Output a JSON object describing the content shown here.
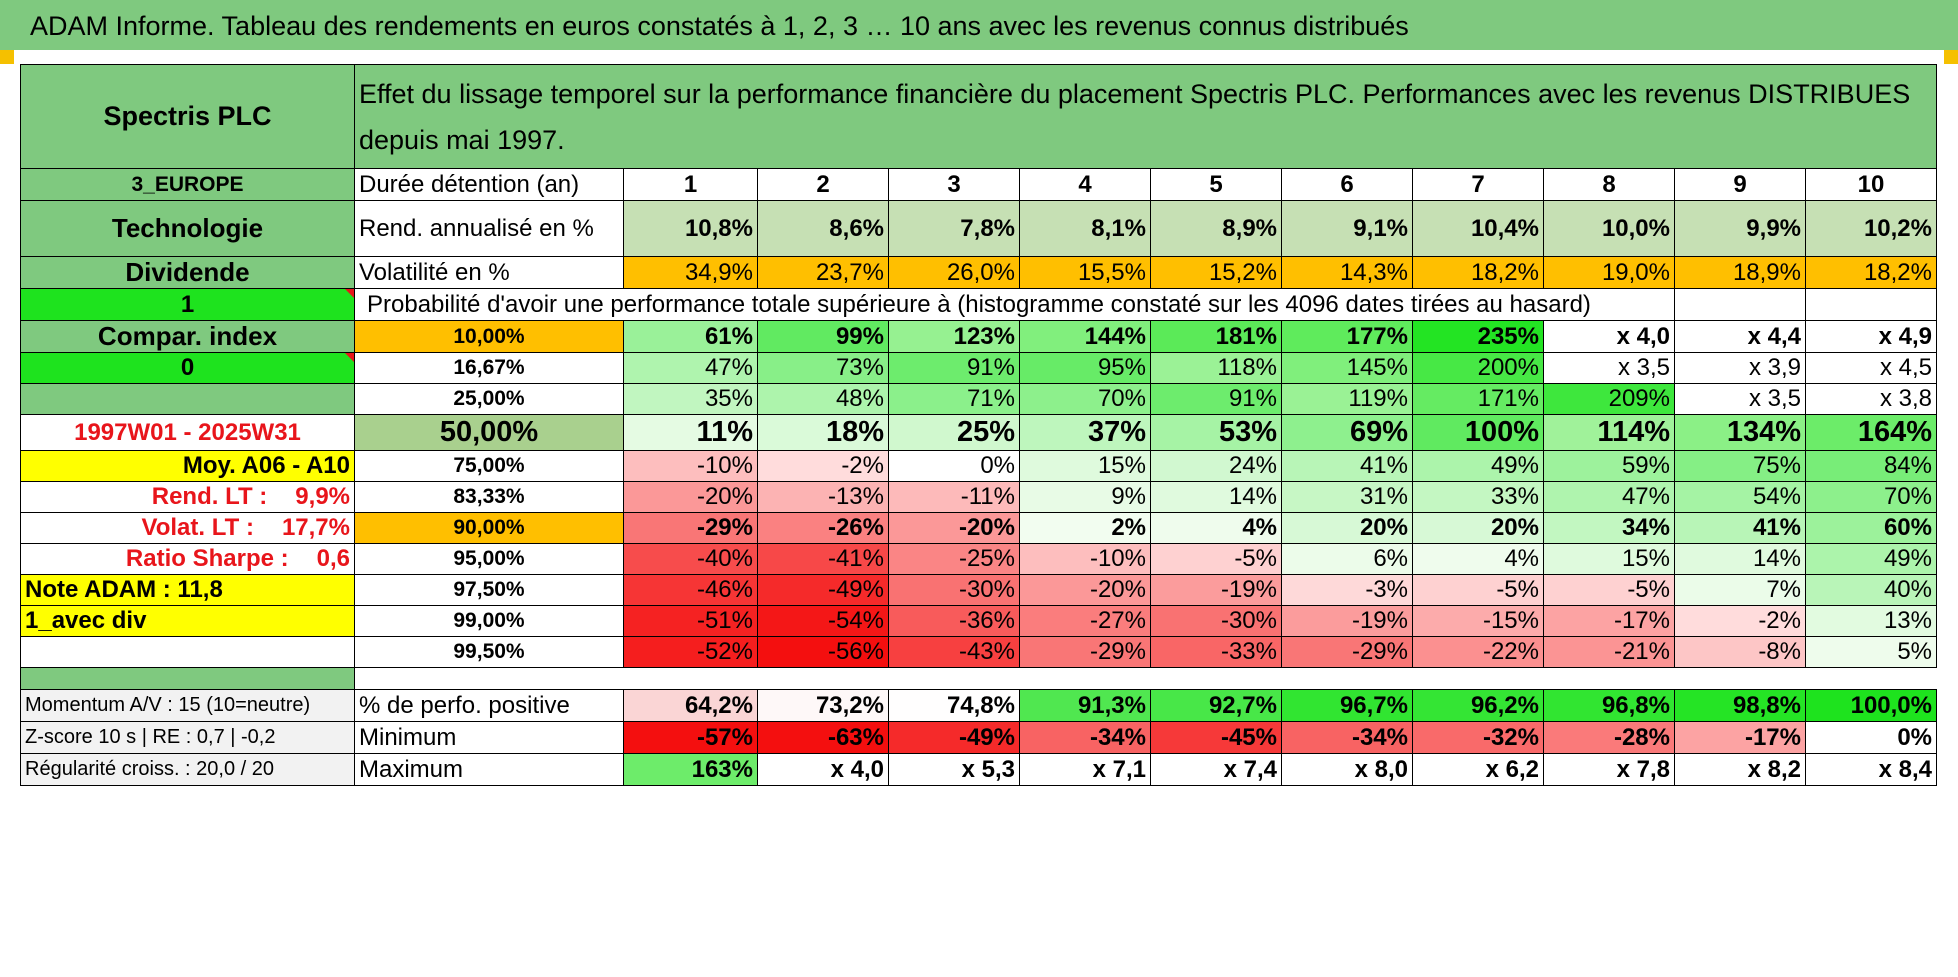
{
  "title": "ADAM Informe. Tableau des rendements en euros constatés à 1, 2, 3 … 10 ans avec les revenus connus distribués",
  "header": {
    "company": "Spectris PLC",
    "description": "Effet du lissage temporel sur la performance financière du placement Spectris PLC. Performances avec les revenus DISTRIBUES depuis mai 1997."
  },
  "left_panel": {
    "region": "3_EUROPE",
    "sector": "Technologie",
    "type": "Dividende",
    "flag1": "1",
    "compar_index": "Compar. index",
    "flag2": "0",
    "period": "1997W01 - 2025W31",
    "moy": "Moy. A06 - A10",
    "rend_label": "Rend. LT :",
    "rend_value": "9,9%",
    "volat_label": "Volat. LT :",
    "volat_value": "17,7%",
    "sharpe_label": "Ratio Sharpe :",
    "sharpe_value": "0,6",
    "note": "Note ADAM : 11,8",
    "div": "1_avec div"
  },
  "durations_label": "Durée détention (an)",
  "durations": [
    "1",
    "2",
    "3",
    "4",
    "5",
    "6",
    "7",
    "8",
    "9",
    "10"
  ],
  "rend_label": "Rend. annualisé en %",
  "rend": [
    "10,8%",
    "8,6%",
    "7,8%",
    "8,1%",
    "8,9%",
    "9,1%",
    "10,4%",
    "10,0%",
    "9,9%",
    "10,2%"
  ],
  "vol_label": "Volatilité en %",
  "vol": [
    "34,9%",
    "23,7%",
    "26,0%",
    "15,5%",
    "15,2%",
    "14,3%",
    "18,2%",
    "19,0%",
    "18,9%",
    "18,2%"
  ],
  "prob_title": "Probabilité d'avoir une performance totale supérieure à (histogramme constaté sur les 4096 dates tirées au hasard)",
  "prob_rows": [
    {
      "p": "10,00%",
      "v": [
        "61%",
        "99%",
        "123%",
        "144%",
        "181%",
        "177%",
        "235%",
        "x 4,0",
        "x 4,4",
        "x 4,9"
      ]
    },
    {
      "p": "16,67%",
      "v": [
        "47%",
        "73%",
        "91%",
        "95%",
        "118%",
        "145%",
        "200%",
        "x 3,5",
        "x 3,9",
        "x 4,5"
      ]
    },
    {
      "p": "25,00%",
      "v": [
        "35%",
        "48%",
        "71%",
        "70%",
        "91%",
        "119%",
        "171%",
        "209%",
        "x 3,5",
        "x 3,8"
      ]
    },
    {
      "p": "50,00%",
      "v": [
        "11%",
        "18%",
        "25%",
        "37%",
        "53%",
        "69%",
        "100%",
        "114%",
        "134%",
        "164%"
      ]
    },
    {
      "p": "75,00%",
      "v": [
        "-10%",
        "-2%",
        "0%",
        "15%",
        "24%",
        "41%",
        "49%",
        "59%",
        "75%",
        "84%"
      ]
    },
    {
      "p": "83,33%",
      "v": [
        "-20%",
        "-13%",
        "-11%",
        "9%",
        "14%",
        "31%",
        "33%",
        "47%",
        "54%",
        "70%"
      ]
    },
    {
      "p": "90,00%",
      "v": [
        "-29%",
        "-26%",
        "-20%",
        "2%",
        "4%",
        "20%",
        "20%",
        "34%",
        "41%",
        "60%"
      ]
    },
    {
      "p": "95,00%",
      "v": [
        "-40%",
        "-41%",
        "-25%",
        "-10%",
        "-5%",
        "6%",
        "4%",
        "15%",
        "14%",
        "49%"
      ]
    },
    {
      "p": "97,50%",
      "v": [
        "-46%",
        "-49%",
        "-30%",
        "-20%",
        "-19%",
        "-3%",
        "-5%",
        "-5%",
        "7%",
        "40%"
      ]
    },
    {
      "p": "99,00%",
      "v": [
        "-51%",
        "-54%",
        "-36%",
        "-27%",
        "-30%",
        "-19%",
        "-15%",
        "-17%",
        "-2%",
        "13%"
      ]
    },
    {
      "p": "99,50%",
      "v": [
        "-52%",
        "-56%",
        "-43%",
        "-29%",
        "-33%",
        "-29%",
        "-22%",
        "-21%",
        "-8%",
        "5%"
      ]
    }
  ],
  "footer": [
    {
      "left": "Momentum A/V : 15 (10=neutre)",
      "label": "% de perfo. positive",
      "v": [
        "64,2%",
        "73,2%",
        "74,8%",
        "91,3%",
        "92,7%",
        "96,7%",
        "96,2%",
        "96,8%",
        "98,8%",
        "100,0%"
      ]
    },
    {
      "left": "Z-score 10 s | RE : 0,7 | -0,2",
      "label": "Minimum",
      "v": [
        "-57%",
        "-63%",
        "-49%",
        "-34%",
        "-45%",
        "-34%",
        "-32%",
        "-28%",
        "-17%",
        "0%"
      ]
    },
    {
      "left": "Régularité croiss. : 20,0 / 20",
      "label": "Maximum",
      "v": [
        "163%",
        "x 4,0",
        "x 5,3",
        "x 7,1",
        "x 7,4",
        "x 8,0",
        "x 6,2",
        "x 7,8",
        "x 8,2",
        "x 8,4"
      ]
    }
  ],
  "colors": {
    "header_green": "#7fc97f",
    "bright_green": "#1ee31e",
    "yellow": "#ffff00",
    "orange": "#ffbf00",
    "rend_green": "#c6e0b4",
    "label_red": "#e8151b"
  }
}
